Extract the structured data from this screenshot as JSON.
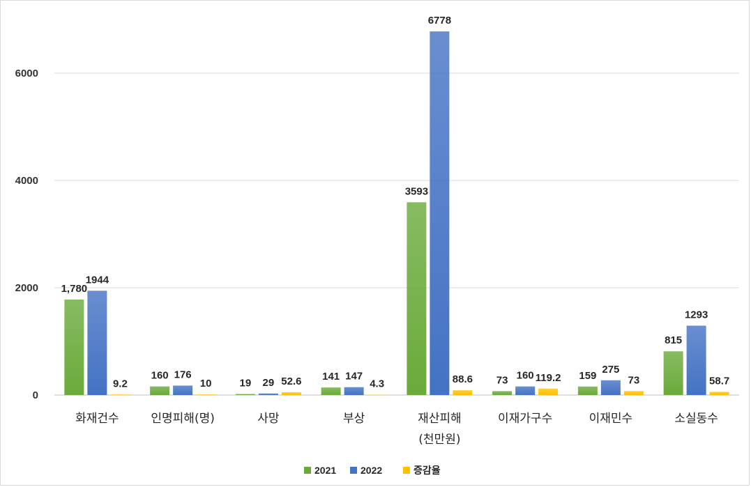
{
  "chart_data": {
    "type": "bar",
    "categories": [
      "화재건수",
      "인명피해(명)",
      "사망",
      "부상",
      "재산피해\n(천만원)",
      "이재가구수",
      "이재민수",
      "소실동수"
    ],
    "series": [
      {
        "name": "2021",
        "color": "#6aaa3a",
        "values": [
          1780,
          160,
          19,
          141,
          3593,
          73,
          159,
          815
        ],
        "labels": [
          "1,780",
          "160",
          "19",
          "141",
          "3593",
          "73",
          "159",
          "815"
        ]
      },
      {
        "name": "2022",
        "color": "#4472c4",
        "values": [
          1944,
          176,
          29,
          147,
          6778,
          160,
          275,
          1293
        ],
        "labels": [
          "1944",
          "176",
          "29",
          "147",
          "6778",
          "160",
          "275",
          "1293"
        ]
      },
      {
        "name": "증감율",
        "color": "#ffc000",
        "values": [
          9.2,
          10,
          52.6,
          4.3,
          88.6,
          119.2,
          73,
          58.7
        ],
        "labels": [
          "9.2",
          "10",
          "52.6",
          "4.3",
          "88.6",
          "119.2",
          "73",
          "58.7"
        ]
      }
    ],
    "ylim": [
      0,
      7000
    ],
    "yticks": [
      0,
      2000,
      4000,
      6000
    ],
    "grid": true,
    "legend": "bottom"
  }
}
